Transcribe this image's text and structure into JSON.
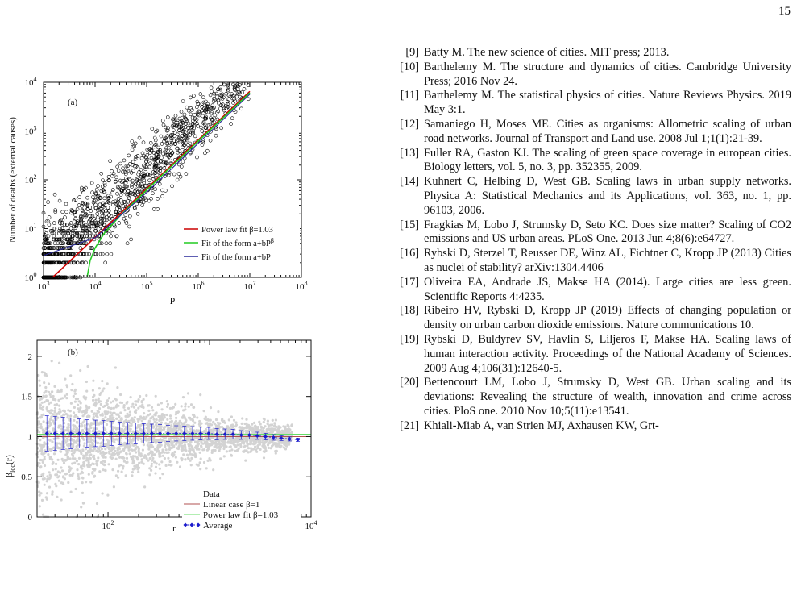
{
  "page_number": "15",
  "figure_a": {
    "panel_label": "(a)",
    "ylabel": "Number of deaths (external causes)",
    "xlabel": "P",
    "x_ticks": [
      "10",
      "10",
      "10",
      "10",
      "10",
      "10"
    ],
    "x_tick_exps": [
      "3",
      "4",
      "5",
      "6",
      "7",
      "8"
    ],
    "y_ticks": [
      "10",
      "10",
      "10",
      "10",
      "10"
    ],
    "y_tick_exps": [
      "0",
      "1",
      "2",
      "3",
      "4"
    ],
    "legend": {
      "power": "Power law fit β=1.03",
      "fit_ab_beta_base": "Fit of the form a+bP",
      "fit_ab_beta_exp": "β",
      "fit_ab": "Fit of the form a+bP"
    },
    "colors": {
      "power": "#cc0000",
      "green": "#22cc22",
      "linear": "#2a2a9a",
      "points": "#000000"
    }
  },
  "figure_b": {
    "panel_label": "(b)",
    "ylabel_main": "β",
    "ylabel_sub": "loc",
    "ylabel_tail": "(r)",
    "xlabel": "r",
    "x_ticks": [
      "10",
      "10",
      "10",
      "10"
    ],
    "x_tick_exps": [
      "2",
      "3",
      "4",
      ""
    ],
    "y_ticks": [
      "0",
      "0.5",
      "1",
      "1.5",
      "2"
    ],
    "legend": {
      "data": "Data",
      "linear": "Linear case β=1",
      "power": "Power law fit β=1.03",
      "average": "Average"
    },
    "colors": {
      "data": "#d3d3d3",
      "linear": "#b05050",
      "power": "#66dd66",
      "average": "#1a1acc"
    }
  },
  "chart_data": [
    {
      "type": "scatter",
      "title": "(a)",
      "xlabel": "P",
      "ylabel": "Number of deaths (external causes)",
      "x_scale": "log",
      "y_scale": "log",
      "xlim": [
        1000,
        100000000
      ],
      "ylim": [
        1,
        10000
      ],
      "legend_position": "bottom-right",
      "series": [
        {
          "name": "Power law fit β=1.03",
          "kind": "line",
          "x": [
            1500,
            10000000
          ],
          "y": [
            1,
            6500
          ]
        },
        {
          "name": "Fit of the form a+bP^β",
          "kind": "line",
          "x": [
            7000,
            8000,
            10000,
            15000,
            30000,
            100000,
            1000000,
            10000000
          ],
          "y": [
            1,
            2.2,
            4,
            8,
            18,
            62,
            620,
            6100
          ]
        },
        {
          "name": "Fit of the form a+bP",
          "kind": "line",
          "x": [
            1000,
            10000,
            100000,
            1000000,
            10000000
          ],
          "y": [
            2.8,
            6.5,
            55,
            560,
            5700
          ]
        }
      ]
    },
    {
      "type": "scatter",
      "title": "(b)",
      "xlabel": "r",
      "ylabel": "β_loc(r)",
      "x_scale": "log",
      "xlim": [
        20,
        10000
      ],
      "ylim": [
        0,
        2.2
      ],
      "legend_position": "bottom-right",
      "series": [
        {
          "name": "Linear case β=1",
          "kind": "line",
          "x": [
            20,
            10000
          ],
          "y": [
            1,
            1
          ]
        },
        {
          "name": "Power law fit β=1.03",
          "kind": "line",
          "x": [
            20,
            10000
          ],
          "y": [
            1.03,
            1.03
          ]
        },
        {
          "name": "Average",
          "kind": "points",
          "x": [
            25,
            30,
            36,
            43,
            52,
            62,
            75,
            90,
            108,
            130,
            156,
            187,
            225,
            270,
            325,
            390,
            470,
            565,
            680,
            815,
            980,
            1180,
            1420,
            1700,
            2050,
            2460,
            2950,
            3550,
            4260,
            5100,
            6150,
            7400
          ],
          "y": [
            1.04,
            1.04,
            1.04,
            1.04,
            1.04,
            1.04,
            1.04,
            1.04,
            1.04,
            1.04,
            1.04,
            1.04,
            1.04,
            1.04,
            1.04,
            1.04,
            1.04,
            1.04,
            1.04,
            1.04,
            1.04,
            1.03,
            1.03,
            1.03,
            1.02,
            1.02,
            1.01,
            1.0,
            0.99,
            0.98,
            0.97,
            0.96
          ],
          "error": [
            0.22,
            0.21,
            0.2,
            0.19,
            0.18,
            0.17,
            0.165,
            0.16,
            0.15,
            0.14,
            0.135,
            0.13,
            0.12,
            0.115,
            0.11,
            0.1,
            0.095,
            0.09,
            0.085,
            0.08,
            0.075,
            0.07,
            0.065,
            0.06,
            0.055,
            0.05,
            0.045,
            0.04,
            0.035,
            0.03,
            0.025,
            0.02
          ]
        }
      ]
    }
  ],
  "references": [
    {
      "num": "[9]",
      "text": "Batty M. The new science of cities. MIT press; 2013."
    },
    {
      "num": "[10]",
      "text": "Barthelemy M. The structure and dynamics of cities. Cambridge University Press; 2016 Nov 24."
    },
    {
      "num": "[11]",
      "text": "Barthelemy M. The statistical physics of cities. Nature Reviews Physics. 2019 May 3:1."
    },
    {
      "num": "[12]",
      "text": "Samaniego H, Moses ME. Cities as organisms: Allometric scaling of urban road networks. Journal of Transport and Land use. 2008 Jul 1;1(1):21-39."
    },
    {
      "num": "[13]",
      "text": "Fuller RA, Gaston KJ. The scaling of green space coverage in european cities. Biology letters, vol. 5, no. 3, pp. 352355, 2009."
    },
    {
      "num": "[14]",
      "text": "Kuhnert C, Helbing D, West GB. Scaling laws in urban supply networks. Physica A: Statistical Mechanics and its Applications, vol. 363, no. 1, pp. 96103, 2006."
    },
    {
      "num": "[15]",
      "text": "Fragkias M, Lobo J, Strumsky D, Seto KC. Does size matter? Scaling of CO2 emissions and US urban areas. PLoS One. 2013 Jun 4;8(6):e64727."
    },
    {
      "num": "[16]",
      "text": "Rybski D, Sterzel T, Reusser DE, Winz AL, Fichtner C, Kropp JP (2013) Cities as nuclei of stability? arXiv:1304.4406"
    },
    {
      "num": "[17]",
      "text": "Oliveira EA, Andrade JS, Makse HA (2014). Large cities are less green. Scientific Reports 4:4235."
    },
    {
      "num": "[18]",
      "text": "Ribeiro HV, Rybski D, Kropp JP (2019) Effects of changing population or density on urban carbon dioxide emissions. Nature communications 10."
    },
    {
      "num": "[19]",
      "text": "Rybski D, Buldyrev SV, Havlin S, Liljeros F, Makse HA. Scaling laws of human interaction activity. Proceedings of the National Academy of Sciences. 2009 Aug 4;106(31):12640-5."
    },
    {
      "num": "[20]",
      "text": "Bettencourt LM, Lobo J, Strumsky D, West GB. Urban scaling and its deviations: Revealing the structure of wealth, innovation and crime across cities. PloS one. 2010 Nov 10;5(11):e13541."
    },
    {
      "num": "[21]",
      "text": "Khiali-Miab A, van Strien MJ, Axhausen KW, Grt-"
    }
  ]
}
